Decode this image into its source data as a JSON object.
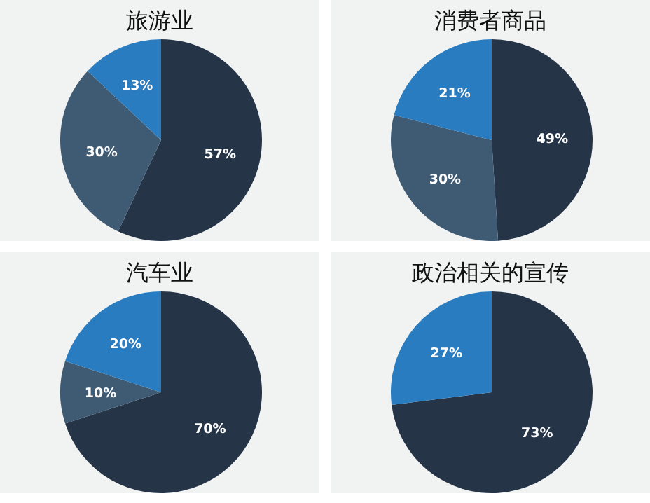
{
  "chart_data": [
    {
      "type": "pie",
      "title": "旅游业",
      "categories": [
        null,
        null,
        null
      ],
      "values": [
        57,
        30,
        13
      ],
      "colors": [
        "#263447",
        "#3f5b74",
        "#2a7cc0"
      ],
      "value_labels": [
        "57%",
        "30%",
        "13%"
      ]
    },
    {
      "type": "pie",
      "title": "消费者商品",
      "categories": [
        null,
        null,
        null
      ],
      "values": [
        49,
        30,
        21
      ],
      "colors": [
        "#263447",
        "#3f5b74",
        "#2a7cc0"
      ],
      "value_labels": [
        "49%",
        "30%",
        "21%"
      ]
    },
    {
      "type": "pie",
      "title": "汽车业",
      "categories": [
        null,
        null,
        null
      ],
      "values": [
        70,
        10,
        20
      ],
      "colors": [
        "#263447",
        "#3f5b74",
        "#2a7cc0"
      ],
      "value_labels": [
        "70%",
        "10%",
        "20%"
      ]
    },
    {
      "type": "pie",
      "title": "政治相关的宣传",
      "categories": [
        null,
        null
      ],
      "values": [
        73,
        27
      ],
      "colors": [
        "#263447",
        "#2a7cc0"
      ],
      "value_labels": [
        "73%",
        "27%"
      ]
    }
  ]
}
